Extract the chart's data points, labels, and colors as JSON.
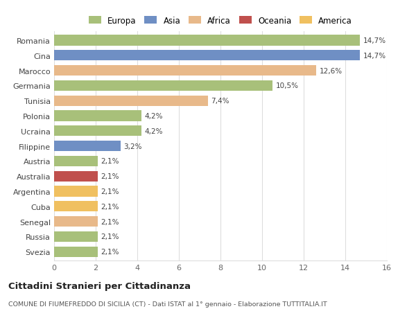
{
  "categories": [
    "Romania",
    "Cina",
    "Marocco",
    "Germania",
    "Tunisia",
    "Polonia",
    "Ucraina",
    "Filippine",
    "Austria",
    "Australia",
    "Argentina",
    "Cuba",
    "Senegal",
    "Russia",
    "Svezia"
  ],
  "values": [
    14.7,
    14.7,
    12.6,
    10.5,
    7.4,
    4.2,
    4.2,
    3.2,
    2.1,
    2.1,
    2.1,
    2.1,
    2.1,
    2.1,
    2.1
  ],
  "labels": [
    "14,7%",
    "14,7%",
    "12,6%",
    "10,5%",
    "7,4%",
    "4,2%",
    "4,2%",
    "3,2%",
    "2,1%",
    "2,1%",
    "2,1%",
    "2,1%",
    "2,1%",
    "2,1%",
    "2,1%"
  ],
  "bar_colors": [
    "#a8c07a",
    "#6f8fc4",
    "#e8b98a",
    "#a8c07a",
    "#e8b98a",
    "#a8c07a",
    "#a8c07a",
    "#6f8fc4",
    "#a8c07a",
    "#c0504d",
    "#f0c060",
    "#f0c060",
    "#e8b98a",
    "#a8c07a",
    "#a8c07a"
  ],
  "continents": [
    "Europa",
    "Asia",
    "Africa",
    "Oceania",
    "America"
  ],
  "legend_colors": [
    "#a8c07a",
    "#6f8fc4",
    "#e8b98a",
    "#c0504d",
    "#f0c060"
  ],
  "xlim": [
    0,
    16
  ],
  "xticks": [
    0,
    2,
    4,
    6,
    8,
    10,
    12,
    14,
    16
  ],
  "title": "Cittadini Stranieri per Cittadinanza",
  "subtitle": "COMUNE DI FIUMEFREDDO DI SICILIA (CT) - Dati ISTAT al 1° gennaio - Elaborazione TUTTITALIA.IT",
  "background_color": "#ffffff",
  "grid_color": "#dddddd"
}
